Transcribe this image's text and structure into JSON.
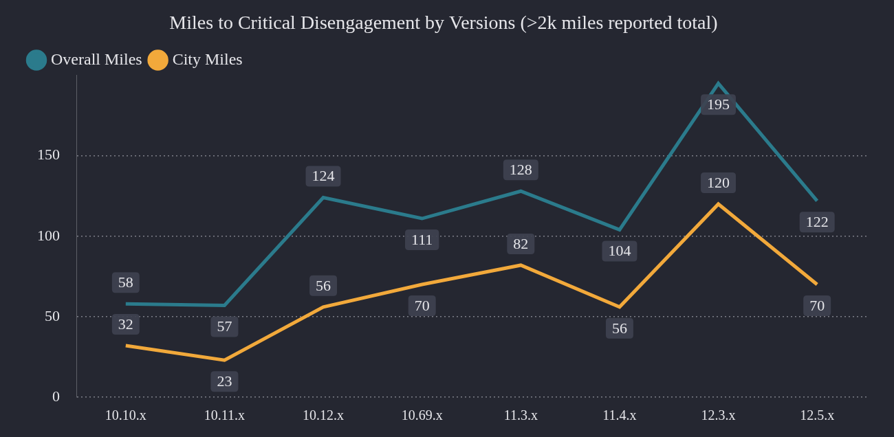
{
  "chart_data": {
    "type": "line",
    "title": "Miles to Critical Disengagement by Versions (>2k miles reported total)",
    "categories": [
      "10.10.x",
      "10.11.x",
      "10.12.x",
      "10.69.x",
      "11.3.x",
      "11.4.x",
      "12.3.x",
      "12.5.x"
    ],
    "series": [
      {
        "name": "Overall Miles",
        "color": "#2b7b8c",
        "values": [
          58,
          57,
          124,
          111,
          128,
          104,
          195,
          122
        ]
      },
      {
        "name": "City Miles",
        "color": "#f2a93b",
        "values": [
          32,
          23,
          56,
          70,
          82,
          56,
          120,
          70
        ]
      }
    ],
    "ylim": [
      0,
      200
    ],
    "yticks": [
      0,
      50,
      100,
      150
    ],
    "grid": true,
    "legend": "top-left",
    "data_labels": true
  }
}
